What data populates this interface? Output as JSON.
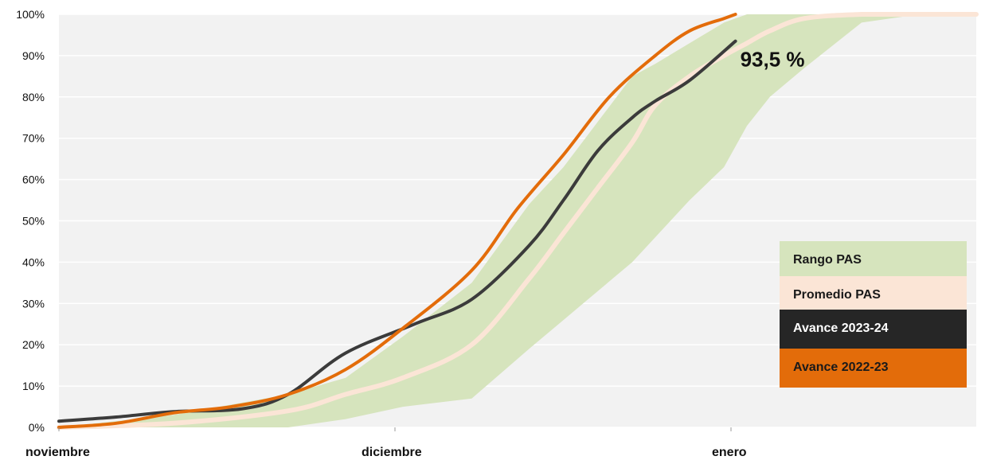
{
  "chart_data": {
    "type": "area",
    "x_labels": [
      "noviembre",
      "diciembre",
      "enero"
    ],
    "y_tick_labels": [
      "0%",
      "10%",
      "20%",
      "30%",
      "40%",
      "50%",
      "60%",
      "70%",
      "80%",
      "90%",
      "100%"
    ],
    "ylim": [
      0,
      100
    ],
    "x_range_days": [
      0,
      80
    ],
    "grid": true,
    "legend_position": "bottom-right",
    "annotation": "93,5 %",
    "range": {
      "name": "Rango PAS",
      "color": "#d6e4bd",
      "x": [
        0,
        10,
        20,
        25,
        30,
        36,
        41,
        44,
        47,
        50,
        52,
        55,
        58,
        60,
        62,
        65,
        70,
        75,
        80
      ],
      "upper": [
        0,
        3,
        8,
        12,
        22,
        35,
        54,
        63,
        74,
        85,
        88,
        93,
        98,
        100,
        100,
        100,
        100,
        100,
        100
      ],
      "lower": [
        0,
        0,
        0,
        2,
        5,
        7,
        19,
        26,
        33,
        40,
        46,
        55,
        63,
        73,
        80,
        87,
        98,
        100,
        100
      ]
    },
    "series": [
      {
        "name": "Promedio PAS",
        "color": "#fbe5d6",
        "x": [
          0,
          10,
          20,
          25,
          30,
          36,
          41,
          44,
          47,
          50,
          52,
          55,
          58,
          60,
          62,
          65,
          70,
          75,
          80
        ],
        "values": [
          0,
          1,
          4,
          8,
          12,
          20,
          36,
          47,
          58,
          69,
          78,
          85,
          90,
          93,
          96,
          99,
          100,
          100,
          100
        ]
      },
      {
        "name": "Avance 2023-24",
        "color": "#3b3b3b",
        "x": [
          0,
          5,
          10,
          16,
          20,
          25,
          31,
          36,
          41,
          44,
          47,
          50,
          52,
          55,
          59
        ],
        "values": [
          1.5,
          2.5,
          3.8,
          4.5,
          8,
          18,
          25,
          31,
          44,
          55,
          67,
          75,
          79,
          84,
          93.5
        ]
      },
      {
        "name": "Avance 2022-23",
        "color": "#e36c0a",
        "x": [
          0,
          5,
          10,
          15,
          20,
          25,
          30,
          36,
          40,
          44,
          48,
          52,
          55,
          58,
          59
        ],
        "values": [
          0,
          1,
          3.5,
          5,
          8,
          14,
          24,
          38,
          53,
          66,
          80,
          90,
          96,
          99,
          100
        ]
      }
    ]
  },
  "legend": [
    {
      "label": "Rango PAS",
      "bg": "#d6e4bd",
      "fg": "#1a1a1a"
    },
    {
      "label": "Promedio PAS",
      "bg": "#fbe5d6",
      "fg": "#1a1a1a"
    },
    {
      "label": "Avance 2023-24",
      "bg": "#262626",
      "fg": "#ffffff"
    },
    {
      "label": "Avance 2022-23",
      "bg": "#e36c0a",
      "fg": "#1a1a1a"
    }
  ]
}
